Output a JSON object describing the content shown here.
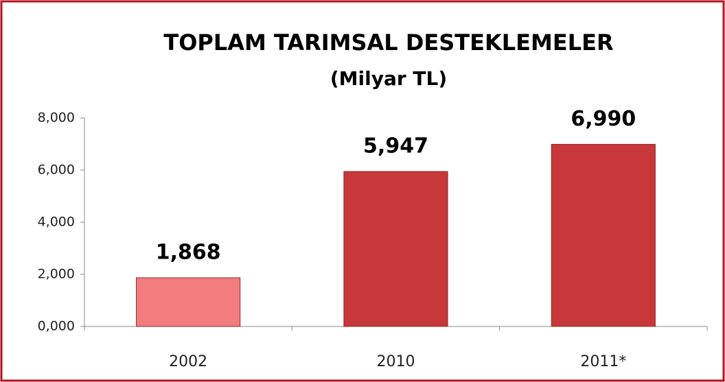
{
  "chart_data": {
    "type": "bar",
    "title": "TOPLAM TARIMSAL DESTEKLEMELER",
    "subtitle": "(Milyar TL)",
    "categories": [
      "2002",
      "2010",
      "2011*"
    ],
    "values": [
      1.868,
      5.947,
      6.99
    ],
    "value_labels": [
      "1,868",
      "5,947",
      "6,990"
    ],
    "colors": [
      "#f27c7e",
      "#c8383a",
      "#c8383a"
    ],
    "ylim": [
      0,
      8
    ],
    "yticks": [
      {
        "value": 0,
        "label": "0,000"
      },
      {
        "value": 2,
        "label": "2,000"
      },
      {
        "value": 4,
        "label": "4,000"
      },
      {
        "value": 6,
        "label": "6,000"
      },
      {
        "value": 8,
        "label": "8,000"
      }
    ],
    "grid": false
  }
}
